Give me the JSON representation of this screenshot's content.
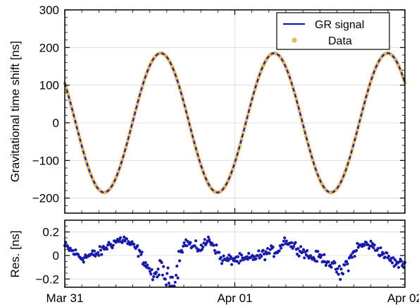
{
  "chart_data": [
    {
      "type": "line",
      "panel": "main",
      "ylabel": "Gravitational time shift [ns]",
      "ylim": [
        -240,
        300
      ],
      "yticks": [
        300,
        200,
        100,
        0,
        -100,
        -200
      ],
      "xlim": [
        0,
        2
      ],
      "grid": true,
      "legend_position": "top-right",
      "series": [
        {
          "name": "GR signal",
          "kind": "line",
          "color": "#1a1aa8",
          "model": {
            "amplitude_ns": 185,
            "period_days": 0.667,
            "value_at_mar31": 105
          },
          "x_start": 0,
          "x_end": 2
        },
        {
          "name": "Data",
          "kind": "points",
          "color": "#e3b863",
          "follows": "GR signal"
        }
      ],
      "legend": [
        {
          "label": "GR signal",
          "color": "#1a1aa8",
          "marker": "line"
        },
        {
          "label": "Data",
          "color": "#e3b863",
          "marker": "dot"
        }
      ]
    },
    {
      "type": "scatter",
      "panel": "residuals",
      "ylabel": "Res. [ns]",
      "ylim": [
        -0.27,
        0.3
      ],
      "yticks": [
        0.2,
        0,
        -0.2
      ],
      "xlim": [
        0,
        2
      ],
      "xticks": [
        0,
        1,
        2
      ],
      "xticklabels": [
        "Mar 31",
        "Apr 01",
        "Apr 02"
      ],
      "grid": true,
      "color": "#1a1aa8",
      "series": [
        {
          "name": "",
          "x": [
            0,
            0.1,
            0.2,
            0.25,
            0.3,
            0.35,
            0.38,
            0.42,
            0.45,
            0.47,
            0.5,
            0.52,
            0.55,
            0.58,
            0.6,
            0.62,
            0.65,
            0.68,
            0.72,
            0.75,
            0.8,
            0.85,
            0.88,
            0.92,
            0.95,
            1.0,
            1.05,
            1.1,
            1.15,
            1.2,
            1.25,
            1.3,
            1.32,
            1.35,
            1.4,
            1.45,
            1.5,
            1.55,
            1.6,
            1.62,
            1.65,
            1.68,
            1.72,
            1.78,
            1.82,
            1.85,
            1.9,
            1.95,
            2.0
          ],
          "y": [
            0.08,
            -0.02,
            0.02,
            0.08,
            0.12,
            0.14,
            0.1,
            0.06,
            0.0,
            -0.06,
            -0.12,
            -0.2,
            -0.12,
            -0.15,
            -0.2,
            -0.23,
            -0.2,
            0.05,
            0.12,
            0.07,
            0.06,
            0.14,
            0.08,
            -0.03,
            -0.04,
            -0.03,
            -0.04,
            -0.02,
            0.0,
            0.03,
            0.04,
            0.14,
            0.1,
            0.08,
            0.04,
            -0.02,
            -0.01,
            -0.05,
            -0.12,
            -0.18,
            -0.08,
            -0.03,
            0.07,
            0.1,
            0.07,
            0.04,
            -0.02,
            -0.07,
            -0.07
          ]
        }
      ]
    }
  ]
}
